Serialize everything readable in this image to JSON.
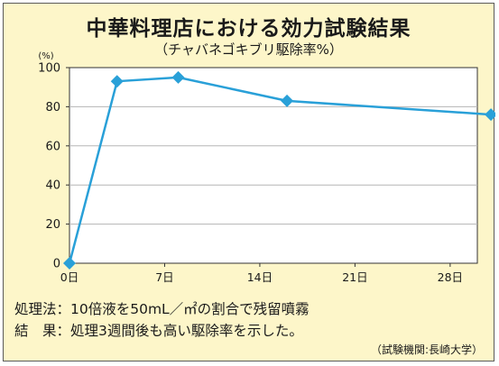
{
  "title": "中華料理店における効力試験結果",
  "subtitle": "（チャバネゴキブリ駆除率%）",
  "notes": {
    "method": "処理法：10倍液を50mL／㎡の割合で残留噴霧",
    "result": "結　果：処理3週間後も高い駆除率を示した。",
    "source": "（試験機関:長崎大学）"
  },
  "colors": {
    "background": "#fdf6c9",
    "plot_background": "#ffffff",
    "series": "#29a0d8",
    "grid": "#b5b5b5"
  },
  "chart_data": {
    "type": "line",
    "title": "中華料理店における効力試験結果",
    "subtitle": "（チャバネゴキブリ駆除率%）",
    "ylabel": "(%)",
    "xlabel": "",
    "ylim": [
      0,
      100
    ],
    "xlim": [
      0,
      30
    ],
    "yticks": [
      0,
      20,
      40,
      60,
      80,
      100
    ],
    "xticks": [
      {
        "value": 0,
        "label": "0日"
      },
      {
        "value": 7,
        "label": "7日"
      },
      {
        "value": 14,
        "label": "14日"
      },
      {
        "value": 21,
        "label": "21日"
      },
      {
        "value": 28,
        "label": "28日"
      }
    ],
    "grid": "horizontal",
    "marker": "diamond",
    "series": [
      {
        "x": [
          0,
          3.5,
          8,
          16,
          31
        ],
        "y": [
          0,
          93,
          95,
          83,
          76
        ]
      }
    ]
  }
}
